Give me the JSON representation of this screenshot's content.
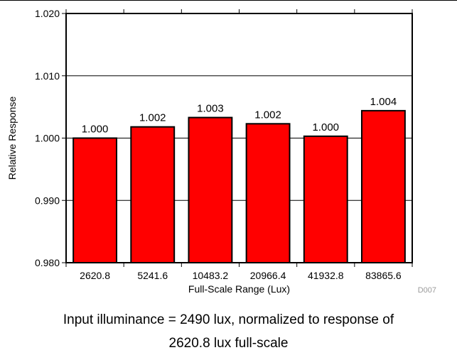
{
  "chart_data": {
    "type": "bar",
    "categories": [
      "2620.8",
      "5241.6",
      "10483.2",
      "20966.4",
      "41932.8",
      "83865.6"
    ],
    "values": [
      1.0,
      1.002,
      1.003,
      1.002,
      1.0,
      1.004
    ],
    "data_labels": [
      "1.000",
      "1.002",
      "1.003",
      "1.002",
      "1.000",
      "1.004"
    ],
    "exact_heights": [
      1.0,
      1.0018,
      1.0033,
      1.0023,
      1.0003,
      1.0044
    ],
    "title": "",
    "xlabel": "Full-Scale Range (Lux)",
    "ylabel": "Relative Response",
    "ylim": [
      0.98,
      1.02
    ],
    "yticks": [
      0.98,
      0.99,
      1.0,
      1.01,
      1.02
    ],
    "ytick_labels": [
      "0.980",
      "0.990",
      "1.000",
      "1.010",
      "1.020"
    ],
    "grid": true,
    "bar_color": "#ff0000",
    "bar_edge_color": "#000000",
    "figure_id": "D007"
  },
  "caption": {
    "line1": "Input illuminance = 2490 lux, normalized to response of",
    "line2": "2620.8 lux full-scale"
  }
}
